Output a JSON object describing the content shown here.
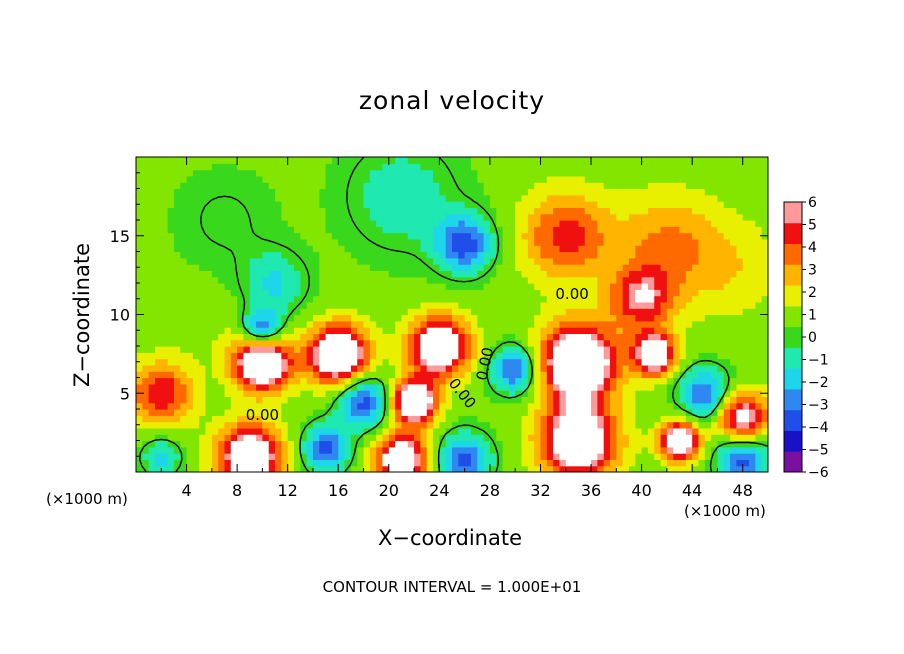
{
  "chart_data": {
    "type": "heatmap",
    "title": "zonal velocity",
    "xlabel": "X−coordinate",
    "ylabel": "Z−coordinate",
    "x_unit_label": "(×1000 m)",
    "x_unit_label_right": "(×1000 m)",
    "xlim": [
      0,
      50
    ],
    "ylim": [
      0,
      20
    ],
    "x_ticks": [
      4,
      8,
      12,
      16,
      20,
      24,
      28,
      32,
      36,
      40,
      44,
      48
    ],
    "y_ticks": [
      5,
      10,
      15
    ],
    "colorbar": {
      "ticks": [
        6,
        5,
        4,
        3,
        2,
        1,
        0,
        -1,
        -2,
        -3,
        -4,
        -5,
        -6
      ],
      "tick_labels": [
        "6",
        "5",
        "4",
        "3",
        "2",
        "1",
        "0",
        "−1",
        "−2",
        "−3",
        "−4",
        "−5",
        "−6"
      ],
      "range": [
        -6,
        6
      ],
      "colors": [
        "#7a0fa0",
        "#1a10c8",
        "#1f4fe8",
        "#2e88f0",
        "#1ed6ea",
        "#1fe8b0",
        "#39d81c",
        "#82e600",
        "#e8f000",
        "#ffb400",
        "#ff6a00",
        "#f01010",
        "#ff9a9a"
      ],
      "out_of_range_color": "#ffffff"
    },
    "contour_labels": [
      "0.00",
      "0.00",
      "0.00",
      "0.00"
    ],
    "contour_interval_text": "CONTOUR INTERVAL = 1.000E+01",
    "field_features": [
      {
        "x": 26,
        "z": 14.5,
        "value": -5,
        "radius": 2.2
      },
      {
        "x": 21,
        "z": 17.5,
        "value": -2,
        "radius": 4.5
      },
      {
        "x": 7,
        "z": 16,
        "value": -1,
        "radius": 4
      },
      {
        "x": 11,
        "z": 12,
        "value": -2.5,
        "radius": 2.5
      },
      {
        "x": 34,
        "z": 15,
        "value": 4.2,
        "radius": 3.5
      },
      {
        "x": 40,
        "z": 11,
        "value": 4.8,
        "radius": 2.5
      },
      {
        "x": 42,
        "z": 14.5,
        "value": 2.8,
        "radius": 4
      },
      {
        "x": 47,
        "z": 13,
        "value": 1.5,
        "radius": 4
      },
      {
        "x": 2,
        "z": 5,
        "value": 4.8,
        "radius": 2.5
      },
      {
        "x": 10,
        "z": 7,
        "value": 9,
        "radius": 2.2
      },
      {
        "x": 10,
        "z": 9,
        "value": -5.5,
        "radius": 1.5
      },
      {
        "x": 16,
        "z": 7.5,
        "value": 9,
        "radius": 2.3
      },
      {
        "x": 24,
        "z": 8,
        "value": 8.5,
        "radius": 2.3
      },
      {
        "x": 22,
        "z": 4.5,
        "value": 9,
        "radius": 1.7
      },
      {
        "x": 18,
        "z": 4.5,
        "value": -5,
        "radius": 2
      },
      {
        "x": 35,
        "z": 7,
        "value": 9,
        "radius": 3
      },
      {
        "x": 30,
        "z": 6.5,
        "value": -5,
        "radius": 1.8
      },
      {
        "x": 41,
        "z": 7.5,
        "value": 8,
        "radius": 1.6
      },
      {
        "x": 48,
        "z": 3.5,
        "value": 6.5,
        "radius": 2
      },
      {
        "x": 43,
        "z": 2,
        "value": 8.5,
        "radius": 1.5
      },
      {
        "x": 45,
        "z": 5,
        "value": -4.5,
        "radius": 2
      },
      {
        "x": 35,
        "z": 2,
        "value": 8,
        "radius": 3
      },
      {
        "x": 9,
        "z": 1,
        "value": 8,
        "radius": 2.5
      },
      {
        "x": 15,
        "z": 1.5,
        "value": -5,
        "radius": 1.8
      },
      {
        "x": 21,
        "z": 0.8,
        "value": 8,
        "radius": 2
      },
      {
        "x": 26,
        "z": 0.8,
        "value": -5,
        "radius": 2
      },
      {
        "x": 2,
        "z": 1,
        "value": -3,
        "radius": 1.5
      },
      {
        "x": 48,
        "z": 0.8,
        "value": -5,
        "radius": 2
      },
      {
        "x": 6,
        "z": 9,
        "value": 0.5,
        "radius": 3
      }
    ]
  }
}
